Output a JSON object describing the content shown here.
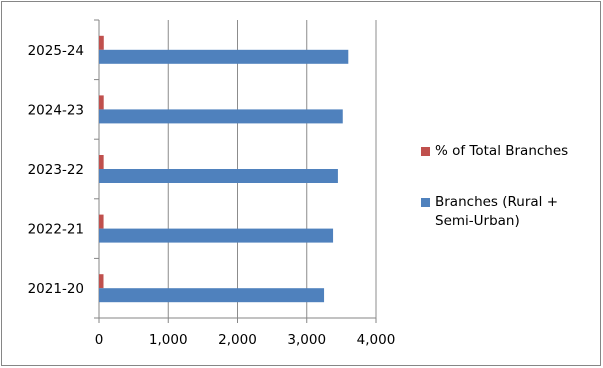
{
  "chart_data": {
    "type": "bar",
    "orientation": "horizontal",
    "categories": [
      "2021-20",
      "2022-21",
      "2023-22",
      "2024-23",
      "2025-24"
    ],
    "series": [
      {
        "name": "Branches (Rural + Semi-Urban)",
        "color": "#4F81BD",
        "values": [
          3250,
          3380,
          3450,
          3520,
          3600
        ]
      },
      {
        "name": "% of Total Branches",
        "color": "#C0504D",
        "values": [
          65,
          66,
          67,
          68,
          69
        ]
      }
    ],
    "xlim": [
      0,
      4000
    ],
    "xticks": [
      "0",
      "1,000",
      "2,000",
      "3,000",
      "4,000"
    ],
    "xtick_values": [
      0,
      1000,
      2000,
      3000,
      4000
    ],
    "grid": true,
    "legend_position": "right",
    "title": "",
    "xlabel": "",
    "ylabel": ""
  },
  "legend": {
    "items": [
      {
        "label": "% of Total Branches",
        "color": "#C0504D"
      },
      {
        "label": "Branches (Rural + Semi-Urban)",
        "color": "#4F81BD"
      }
    ]
  }
}
